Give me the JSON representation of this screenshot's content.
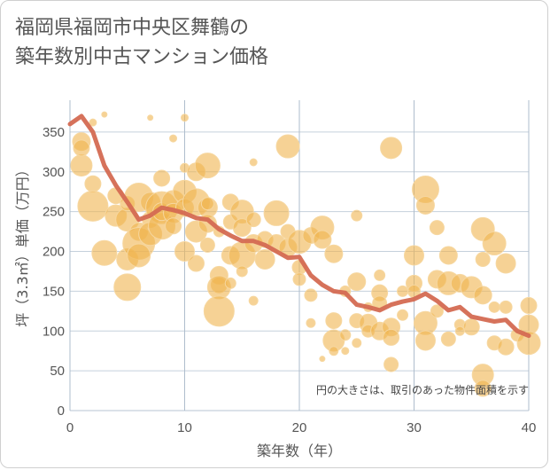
{
  "title_lines": [
    "福岡県福岡市中央区舞鶴の",
    "築年数別中古マンション価格"
  ],
  "note": "円の大きさは、取引のあった物件面積を示す",
  "colors": {
    "bubble": "#f0b44e",
    "bubble_stroke": "#f6d7a0",
    "line": "#d46a52",
    "grid": "#c5d0dc",
    "grid_hl": "#aebdcc"
  },
  "chart_data": {
    "type": "scatter",
    "xlabel": "築年数（年）",
    "ylabel": "坪（3.3㎡）単価（万円）",
    "xlim": [
      0,
      40
    ],
    "ylim": [
      0,
      390
    ],
    "xticks": [
      0,
      10,
      20,
      30,
      40
    ],
    "yticks": [
      0,
      50,
      100,
      150,
      200,
      250,
      300,
      350
    ],
    "grid": true,
    "series": [
      {
        "type": "bubble",
        "points": [
          [
            1,
            338,
            10
          ],
          [
            1,
            308,
            12
          ],
          [
            1,
            330,
            9
          ],
          [
            2,
            362,
            4
          ],
          [
            2,
            285,
            9
          ],
          [
            2,
            257,
            17
          ],
          [
            3,
            372,
            3
          ],
          [
            3,
            198,
            14
          ],
          [
            4,
            270,
            9
          ],
          [
            4,
            245,
            12
          ],
          [
            5,
            240,
            13
          ],
          [
            5,
            190,
            12
          ],
          [
            5,
            155,
            15
          ],
          [
            5,
            260,
            8
          ],
          [
            6,
            268,
            16
          ],
          [
            6,
            225,
            10
          ],
          [
            6,
            210,
            18
          ],
          [
            6,
            195,
            13
          ],
          [
            7,
            262,
            11
          ],
          [
            7,
            240,
            9
          ],
          [
            7,
            222,
            13
          ],
          [
            7,
            368,
            3
          ],
          [
            8,
            292,
            9
          ],
          [
            8,
            255,
            18
          ],
          [
            8,
            232,
            15
          ],
          [
            8,
            250,
            10
          ],
          [
            9,
            262,
            13
          ],
          [
            9,
            248,
            11
          ],
          [
            9,
            342,
            4
          ],
          [
            10,
            275,
            13
          ],
          [
            10,
            255,
            10
          ],
          [
            10,
            200,
            11
          ],
          [
            10,
            368,
            4
          ],
          [
            10,
            305,
            5
          ],
          [
            11,
            300,
            10
          ],
          [
            11,
            262,
            15
          ],
          [
            11,
            225,
            12
          ],
          [
            11,
            185,
            9
          ],
          [
            12,
            308,
            14
          ],
          [
            12,
            255,
            11
          ],
          [
            12,
            235,
            10
          ],
          [
            12,
            208,
            8
          ],
          [
            13,
            170,
            10
          ],
          [
            13,
            158,
            9
          ],
          [
            13,
            155,
            13
          ],
          [
            13,
            125,
            17
          ],
          [
            13,
            225,
            6
          ],
          [
            14,
            262,
            9
          ],
          [
            14,
            237,
            8
          ],
          [
            14,
            195,
            10
          ],
          [
            14,
            160,
            6
          ],
          [
            15,
            250,
            13
          ],
          [
            15,
            230,
            10
          ],
          [
            15,
            195,
            15
          ],
          [
            16,
            312,
            4
          ],
          [
            16,
            240,
            8
          ],
          [
            16,
            210,
            10
          ],
          [
            16,
            138,
            5
          ],
          [
            17,
            190,
            11
          ],
          [
            17,
            215,
            9
          ],
          [
            18,
            248,
            14
          ],
          [
            18,
            210,
            10
          ],
          [
            19,
            332,
            13
          ],
          [
            19,
            205,
            10
          ],
          [
            19,
            225,
            8
          ],
          [
            20,
            212,
            13
          ],
          [
            20,
            180,
            8
          ],
          [
            20,
            165,
            7
          ],
          [
            21,
            220,
            9
          ],
          [
            21,
            145,
            7
          ],
          [
            21,
            110,
            5
          ],
          [
            22,
            230,
            13
          ],
          [
            22,
            215,
            10
          ],
          [
            22,
            65,
            3
          ],
          [
            23,
            197,
            10
          ],
          [
            23,
            113,
            9
          ],
          [
            23,
            88,
            12
          ],
          [
            23,
            75,
            5
          ],
          [
            24,
            150,
            6
          ],
          [
            24,
            95,
            6
          ],
          [
            25,
            245,
            6
          ],
          [
            25,
            162,
            10
          ],
          [
            25,
            113,
            8
          ],
          [
            25,
            85,
            5
          ],
          [
            26,
            110,
            10
          ],
          [
            26,
            100,
            7
          ],
          [
            27,
            170,
            6
          ],
          [
            27,
            148,
            9
          ],
          [
            27,
            135,
            8
          ],
          [
            27,
            100,
            10
          ],
          [
            28,
            330,
            12
          ],
          [
            28,
            105,
            10
          ],
          [
            28,
            92,
            9
          ],
          [
            28,
            58,
            8
          ],
          [
            29,
            150,
            6
          ],
          [
            29,
            120,
            6
          ],
          [
            30,
            195,
            11
          ],
          [
            30,
            160,
            9
          ],
          [
            30,
            150,
            7
          ],
          [
            31,
            278,
            15
          ],
          [
            31,
            258,
            10
          ],
          [
            31,
            110,
            13
          ],
          [
            31,
            88,
            11
          ],
          [
            32,
            230,
            8
          ],
          [
            32,
            165,
            10
          ],
          [
            32,
            125,
            7
          ],
          [
            33,
            195,
            10
          ],
          [
            33,
            160,
            13
          ],
          [
            33,
            90,
            8
          ],
          [
            34,
            160,
            10
          ],
          [
            34,
            108,
            6
          ],
          [
            35,
            105,
            9
          ],
          [
            35,
            155,
            12
          ],
          [
            36,
            228,
            13
          ],
          [
            36,
            190,
            8
          ],
          [
            36,
            145,
            10
          ],
          [
            36,
            45,
            12
          ],
          [
            36,
            28,
            9
          ],
          [
            37,
            210,
            13
          ],
          [
            37,
            130,
            6
          ],
          [
            37,
            85,
            8
          ],
          [
            38,
            185,
            11
          ],
          [
            38,
            130,
            7
          ],
          [
            38,
            80,
            9
          ],
          [
            39,
            95,
            7
          ],
          [
            40,
            132,
            9
          ],
          [
            40,
            108,
            11
          ],
          [
            40,
            85,
            13
          ],
          [
            34,
            100,
            5
          ],
          [
            26,
            130,
            5
          ],
          [
            24,
            75,
            4
          ],
          [
            12,
            260,
            7
          ],
          [
            9,
            232,
            9
          ],
          [
            15,
            175,
            6
          ]
        ]
      },
      {
        "type": "line",
        "x": [
          0,
          1,
          2,
          3,
          4,
          5,
          6,
          7,
          8,
          9,
          10,
          11,
          12,
          13,
          14,
          15,
          16,
          17,
          18,
          19,
          20,
          21,
          22,
          23,
          24,
          25,
          26,
          27,
          28,
          29,
          30,
          31,
          32,
          33,
          34,
          35,
          36,
          37,
          38,
          39,
          40
        ],
        "y": [
          360,
          370,
          350,
          308,
          283,
          262,
          240,
          245,
          255,
          252,
          248,
          242,
          240,
          228,
          220,
          213,
          213,
          208,
          200,
          192,
          193,
          170,
          158,
          150,
          148,
          133,
          130,
          126,
          133,
          137,
          140,
          147,
          138,
          126,
          130,
          118,
          115,
          112,
          114,
          100,
          94
        ]
      }
    ]
  }
}
